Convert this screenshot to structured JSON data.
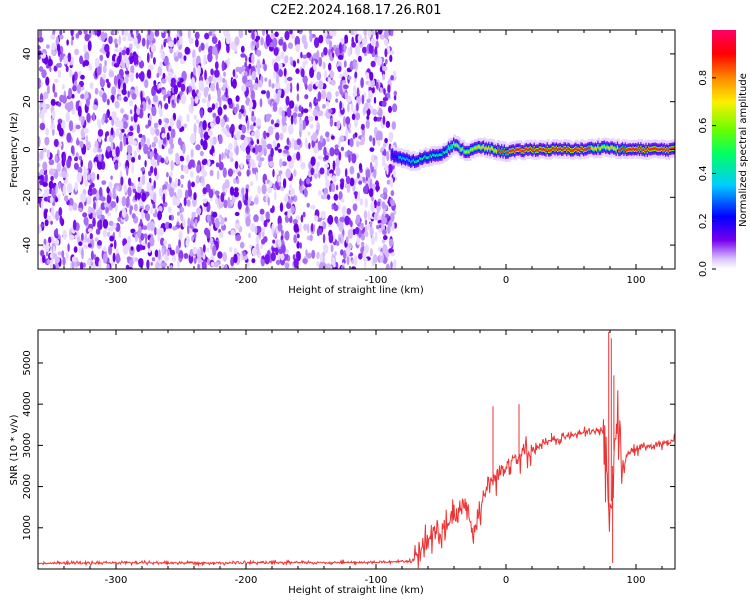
{
  "figure_title": "C2E2.2024.168.17.26.R01",
  "chart_data": [
    {
      "type": "heatmap",
      "title": "C2E2.2024.168.17.26.R01",
      "xlabel": "Height of straight line (km)",
      "ylabel": "Frequency (Hz)",
      "xlim": [
        -360,
        130
      ],
      "ylim": [
        -50,
        50
      ],
      "x_ticks": [
        -300,
        -200,
        -100,
        0,
        100
      ],
      "y_ticks": [
        -40,
        -20,
        0,
        20,
        40
      ],
      "noise_region": {
        "x": [
          -360,
          -85
        ],
        "description_values": "random low-amplitude speckle across all frequencies"
      },
      "ridge": {
        "x": [
          -88,
          -80,
          -70,
          -60,
          -50,
          -40,
          -30,
          -20,
          -10,
          0,
          20,
          40,
          60,
          75,
          90,
          110,
          130
        ],
        "frequency": [
          -2,
          -4,
          -5,
          -3,
          -2,
          2,
          -1,
          1,
          0,
          -1,
          0,
          0,
          0,
          1,
          0,
          0,
          0
        ],
        "amplitude": [
          0.3,
          0.45,
          0.5,
          0.5,
          0.55,
          0.6,
          0.65,
          0.75,
          0.8,
          0.85,
          0.9,
          0.9,
          0.88,
          0.7,
          0.85,
          0.9,
          0.9
        ]
      },
      "colorbar": {
        "label": "Normalized spectral amplitude",
        "range": [
          0.0,
          1.0
        ],
        "ticks": [
          "0.0",
          "0.2",
          "0.4",
          "0.6",
          "0.8"
        ],
        "colormap": "gist_rainbow_r"
      }
    },
    {
      "type": "line",
      "xlabel": "Height of straight line (km)",
      "ylabel": "SNR (10 * v/v)",
      "xlim": [
        -360,
        130
      ],
      "ylim": [
        0,
        5800
      ],
      "x_ticks": [
        -300,
        -200,
        -100,
        0,
        100
      ],
      "y_ticks": [
        1000,
        2000,
        3000,
        4000,
        5000
      ],
      "line_color": "#ee3333",
      "series": [
        {
          "x": [
            -360,
            -300,
            -200,
            -100,
            -70,
            -65,
            -60,
            -55,
            -50,
            -45,
            -40,
            -35,
            -30,
            -25,
            -20,
            -15,
            -10,
            -5,
            0,
            10,
            20,
            30,
            40,
            50,
            60,
            70,
            75,
            78,
            80,
            82,
            85,
            88,
            90,
            100,
            110,
            120,
            130
          ],
          "y": [
            140,
            150,
            150,
            160,
            200,
            450,
            700,
            900,
            850,
            1050,
            1200,
            1500,
            1600,
            800,
            1450,
            2000,
            2200,
            2300,
            2600,
            2750,
            2900,
            3050,
            3150,
            3250,
            3300,
            3350,
            3350,
            2200,
            800,
            2500,
            3600,
            3000,
            2700,
            2900,
            3000,
            3050,
            3100
          ]
        }
      ]
    }
  ]
}
